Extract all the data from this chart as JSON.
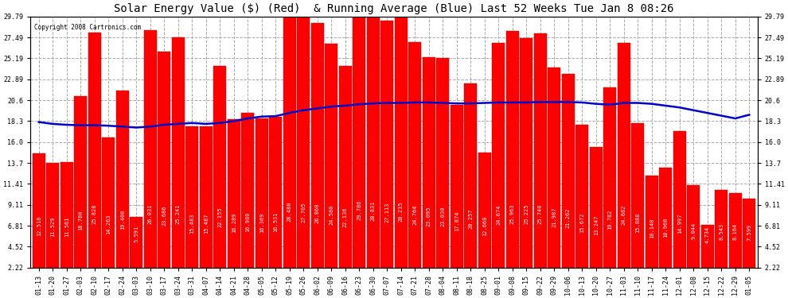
{
  "title": "Solar Energy Value ($) (Red)  & Running Average (Blue) Last 52 Weeks Tue Jan 8 08:26",
  "copyright": "Copyright 2008 Cartronics.com",
  "bar_color": "#ff0000",
  "line_color": "#0000cc",
  "bg_color": "#ffffff",
  "grid_color": "#aaaaaa",
  "ylim_min": 2.22,
  "ylim_max": 29.79,
  "yticks": [
    2.22,
    4.52,
    6.81,
    9.11,
    11.41,
    13.7,
    16.0,
    18.3,
    20.6,
    22.89,
    25.19,
    27.49,
    29.79
  ],
  "dates": [
    "01-13",
    "01-20",
    "01-27",
    "02-03",
    "02-10",
    "02-17",
    "02-24",
    "03-03",
    "03-10",
    "03-17",
    "03-24",
    "03-31",
    "04-07",
    "04-14",
    "04-21",
    "04-28",
    "05-05",
    "05-12",
    "05-19",
    "05-26",
    "06-02",
    "06-09",
    "06-16",
    "06-23",
    "06-30",
    "07-07",
    "07-14",
    "07-21",
    "07-28",
    "08-04",
    "08-11",
    "08-18",
    "08-25",
    "09-01",
    "09-08",
    "09-15",
    "09-22",
    "09-29",
    "10-06",
    "10-13",
    "10-20",
    "10-27",
    "11-03",
    "11-10",
    "11-17",
    "11-24",
    "12-01",
    "12-08",
    "12-15",
    "12-22",
    "12-29",
    "01-05"
  ],
  "values": [
    12.51,
    11.529,
    11.561,
    18.78,
    25.828,
    14.263,
    19.4,
    5.591,
    26.031,
    23.686,
    25.241,
    15.483,
    15.487,
    22.155,
    16.289,
    16.98,
    16.369,
    16.531,
    28.48,
    27.705,
    26.86,
    24.58,
    22.136,
    29.786,
    28.831,
    27.113,
    28.235,
    24.764,
    23.095,
    23.03,
    17.874,
    20.257,
    12.668,
    24.674,
    25.963,
    25.225,
    25.74,
    21.987,
    21.262,
    15.672,
    13.247,
    19.782,
    24.682,
    15.888,
    10.14,
    10.96,
    14.997,
    9.044,
    4.734,
    8.543,
    8.164,
    7.599
  ],
  "running_avg": [
    18.2,
    18.0,
    17.9,
    17.85,
    17.85,
    17.8,
    17.7,
    17.6,
    17.7,
    17.9,
    18.0,
    18.1,
    18.0,
    18.1,
    18.3,
    18.6,
    18.8,
    18.85,
    19.2,
    19.5,
    19.7,
    19.9,
    20.0,
    20.15,
    20.25,
    20.3,
    20.3,
    20.35,
    20.35,
    20.3,
    20.25,
    20.25,
    20.3,
    20.35,
    20.35,
    20.35,
    20.4,
    20.4,
    20.4,
    20.35,
    20.2,
    20.1,
    20.3,
    20.3,
    20.2,
    20.0,
    19.8,
    19.5,
    19.2,
    18.9,
    18.6,
    19.0
  ],
  "title_fontsize": 10,
  "tick_fontsize": 6,
  "bar_value_fontsize": 5
}
